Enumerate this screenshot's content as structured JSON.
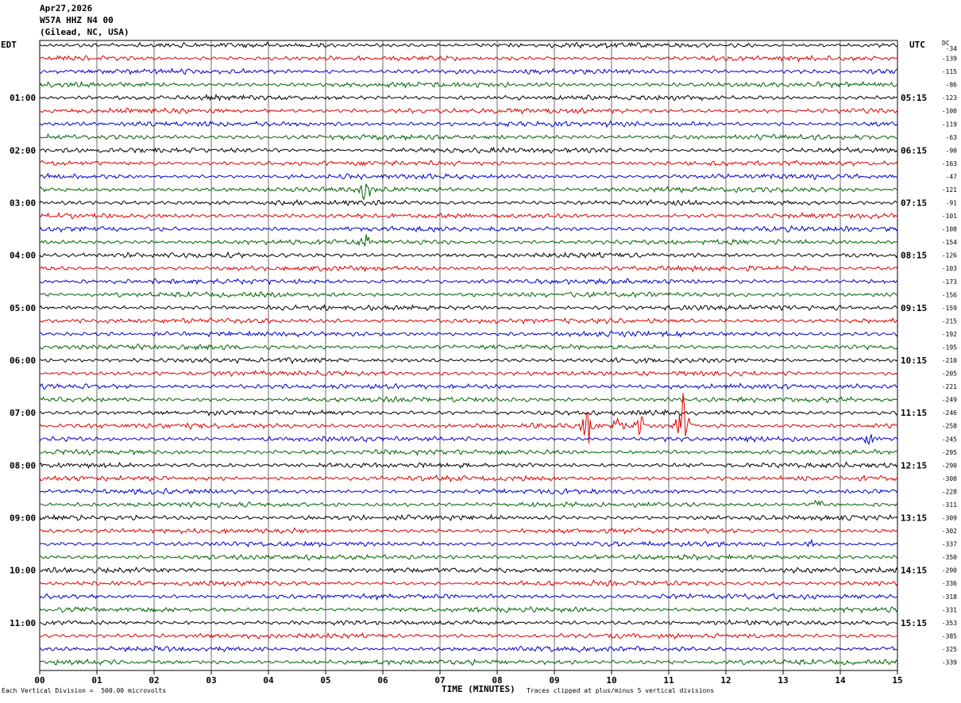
{
  "header": {
    "date": "Apr27,2026",
    "station": "W57A HHZ N4 00",
    "location": "(Gilead, NC, USA)"
  },
  "left_tz": "EDT",
  "right_tz": "UTC",
  "dc_label": "DC",
  "footer": {
    "scale": "Each Vertical Division =  500.00 microvolts",
    "xlabel": "TIME (MINUTES)",
    "clip_note": "Traces clipped at plus/minus 5 vertical divisions"
  },
  "colors": {
    "trace_cycle": [
      "#000000",
      "#e00000",
      "#0000cc",
      "#006400"
    ],
    "grid": "#000000",
    "background": "#ffffff"
  },
  "chart_data": {
    "type": "line",
    "title": "W57A HHZ N4 00",
    "xlabel": "TIME (MINUTES)",
    "xlim": [
      0,
      15
    ],
    "x_ticks": [
      "00",
      "01",
      "02",
      "03",
      "04",
      "05",
      "06",
      "07",
      "08",
      "09",
      "10",
      "11",
      "12",
      "13",
      "14",
      "15"
    ],
    "rows_per_hour": 4,
    "row_minutes": 15,
    "left_hour_labels": [
      "01:00",
      "02:00",
      "03:00",
      "04:00",
      "05:00",
      "06:00",
      "07:00",
      "08:00",
      "09:00",
      "10:00",
      "11:00"
    ],
    "right_hour_labels": [
      "05:15",
      "06:15",
      "07:15",
      "08:15",
      "09:15",
      "10:15",
      "11:15",
      "12:15",
      "13:15",
      "14:15",
      "15:15"
    ],
    "dc_offsets": [
      -34,
      -139,
      -115,
      -86,
      -123,
      -100,
      -119,
      -63,
      -90,
      -163,
      -47,
      -121,
      -91,
      -101,
      -108,
      -154,
      -126,
      -103,
      -173,
      -156,
      -159,
      -215,
      -192,
      -195,
      -210,
      -205,
      -221,
      -249,
      -246,
      -258,
      -245,
      -295,
      -290,
      -300,
      -228,
      -311,
      -309,
      -302,
      -337,
      -350,
      -290,
      -336,
      -318,
      -331,
      -353,
      -385,
      -325,
      -339
    ],
    "events": [
      {
        "row": 11,
        "minute": 5.7,
        "amplitude": 2.0
      },
      {
        "row": 15,
        "minute": 5.7,
        "amplitude": 1.5
      },
      {
        "row": 29,
        "minute": 9.6,
        "amplitude": 3.5
      },
      {
        "row": 29,
        "minute": 10.1,
        "amplitude": 2.0
      },
      {
        "row": 29,
        "minute": 10.5,
        "amplitude": 2.5
      },
      {
        "row": 29,
        "minute": 11.25,
        "amplitude": 5.0
      },
      {
        "row": 30,
        "minute": 14.5,
        "amplitude": 1.2
      },
      {
        "row": 35,
        "minute": 13.6,
        "amplitude": 1.0
      },
      {
        "row": 38,
        "minute": 13.5,
        "amplitude": 1.0
      }
    ]
  }
}
